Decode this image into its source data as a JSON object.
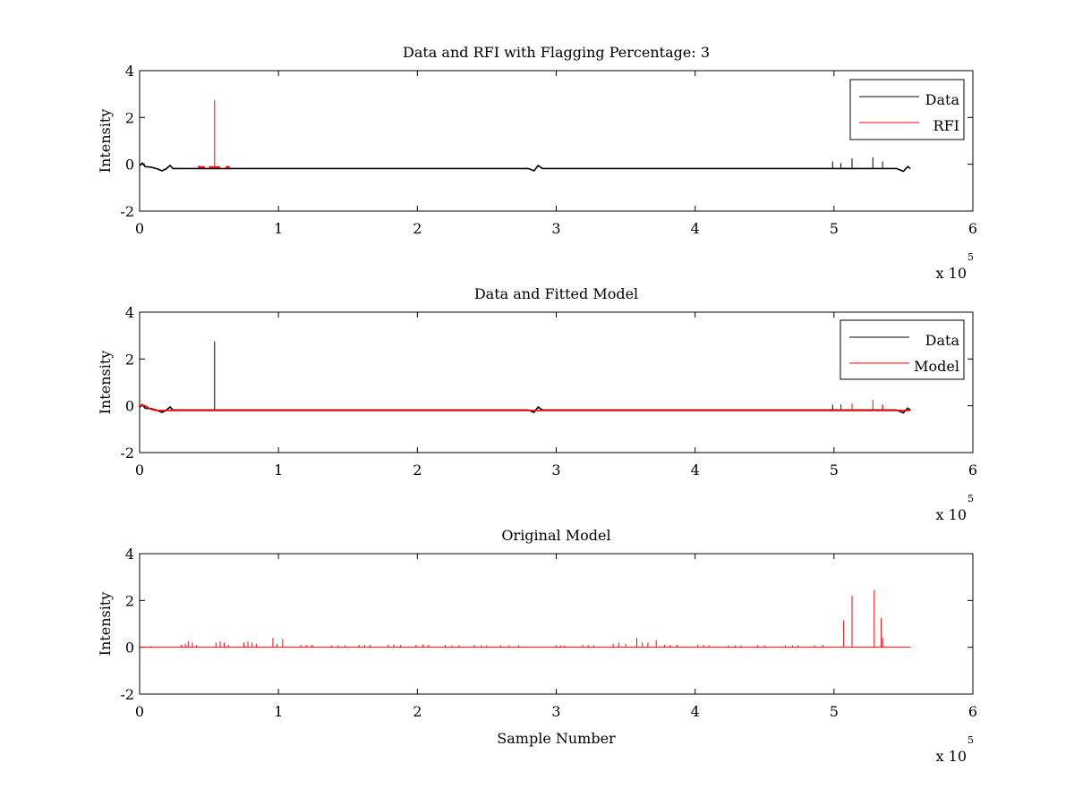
{
  "chart_data": [
    {
      "type": "line",
      "title": "Data and RFI with Flagging Percentage: 3",
      "xlabel": "",
      "ylabel": "Intensity",
      "x_exponent": "x 10",
      "x_exponent_power": "5",
      "xlim": [
        0,
        6
      ],
      "ylim": [
        -2,
        4
      ],
      "x_ticks": [
        "0",
        "1",
        "2",
        "3",
        "4",
        "5",
        "6"
      ],
      "y_ticks": [
        "-2",
        "0",
        "2",
        "4"
      ],
      "grid": false,
      "legend_position": "top-right",
      "series": [
        {
          "name": "Data",
          "color": "#000000",
          "baseline": -0.18,
          "x_end": 5.55,
          "points": [
            [
              0,
              -0.05
            ],
            [
              0.02,
              0.05
            ],
            [
              0.04,
              -0.1
            ],
            [
              0.08,
              -0.12
            ],
            [
              0.13,
              -0.2
            ],
            [
              0.16,
              -0.28
            ],
            [
              0.19,
              -0.2
            ],
            [
              0.22,
              -0.05
            ],
            [
              0.24,
              -0.18
            ],
            [
              2.8,
              -0.18
            ],
            [
              2.84,
              -0.28
            ],
            [
              2.87,
              -0.05
            ],
            [
              2.9,
              -0.18
            ],
            [
              5.45,
              -0.18
            ],
            [
              5.5,
              -0.3
            ],
            [
              5.53,
              -0.1
            ],
            [
              5.55,
              -0.18
            ]
          ],
          "spikes": [
            [
              4.99,
              0.12
            ],
            [
              5.05,
              0.05
            ],
            [
              5.13,
              0.25
            ],
            [
              5.28,
              0.3
            ],
            [
              5.35,
              0.12
            ]
          ]
        },
        {
          "name": "RFI",
          "color": "#ff0000",
          "baseline": -0.12,
          "segments": [
            [
              0.42,
              0.47
            ],
            [
              0.5,
              0.58
            ],
            [
              0.62,
              0.65
            ]
          ],
          "spikes": [
            [
              0.54,
              2.75
            ],
            [
              0.43,
              -0.05
            ],
            [
              0.63,
              -0.05
            ]
          ]
        }
      ]
    },
    {
      "type": "line",
      "title": "Data and Fitted Model",
      "xlabel": "",
      "ylabel": "Intensity",
      "x_exponent": "x 10",
      "x_exponent_power": "5",
      "xlim": [
        0,
        6
      ],
      "ylim": [
        -2,
        4
      ],
      "x_ticks": [
        "0",
        "1",
        "2",
        "3",
        "4",
        "5",
        "6"
      ],
      "y_ticks": [
        "-2",
        "0",
        "2",
        "4"
      ],
      "grid": false,
      "legend_position": "top-right",
      "series": [
        {
          "name": "Data",
          "color": "#000000",
          "baseline": -0.18,
          "x_end": 5.55,
          "points": [
            [
              0,
              -0.05
            ],
            [
              0.02,
              0.05
            ],
            [
              0.04,
              -0.1
            ],
            [
              0.08,
              -0.12
            ],
            [
              0.13,
              -0.2
            ],
            [
              0.16,
              -0.28
            ],
            [
              0.19,
              -0.2
            ],
            [
              0.22,
              -0.05
            ],
            [
              0.24,
              -0.18
            ],
            [
              2.8,
              -0.18
            ],
            [
              2.84,
              -0.28
            ],
            [
              2.87,
              -0.05
            ],
            [
              2.9,
              -0.18
            ],
            [
              5.45,
              -0.18
            ],
            [
              5.5,
              -0.3
            ],
            [
              5.53,
              -0.1
            ],
            [
              5.55,
              -0.18
            ]
          ],
          "spikes": [
            [
              0.54,
              2.75
            ],
            [
              4.99,
              0.05
            ],
            [
              5.05,
              0.05
            ],
            [
              5.35,
              0.05
            ]
          ]
        },
        {
          "name": "Model",
          "color": "#ff0000",
          "baseline": -0.2,
          "x_end": 5.55,
          "points": [
            [
              0,
              0.02
            ],
            [
              0.04,
              0.0
            ],
            [
              0.08,
              -0.15
            ],
            [
              0.12,
              -0.2
            ],
            [
              5.55,
              -0.2
            ]
          ],
          "spikes": [
            [
              5.05,
              0.0
            ],
            [
              5.13,
              0.1
            ],
            [
              5.28,
              0.25
            ],
            [
              5.35,
              0.05
            ]
          ]
        }
      ]
    },
    {
      "type": "line",
      "title": "Original Model",
      "xlabel": "Sample Number",
      "ylabel": "Intensity",
      "x_exponent": "x 10",
      "x_exponent_power": "5",
      "xlim": [
        0,
        6
      ],
      "ylim": [
        -2,
        4
      ],
      "x_ticks": [
        "0",
        "1",
        "2",
        "3",
        "4",
        "5",
        "6"
      ],
      "y_ticks": [
        "-2",
        "0",
        "2",
        "4"
      ],
      "grid": false,
      "legend_position": "none",
      "series": [
        {
          "color": "#ff0000",
          "baseline": 0,
          "x_end": 5.55,
          "spikes": [
            [
              0.08,
              0.05
            ],
            [
              0.3,
              0.1
            ],
            [
              0.33,
              0.15
            ],
            [
              0.35,
              0.25
            ],
            [
              0.38,
              0.2
            ],
            [
              0.41,
              0.1
            ],
            [
              0.55,
              0.2
            ],
            [
              0.58,
              0.25
            ],
            [
              0.61,
              0.2
            ],
            [
              0.64,
              0.1
            ],
            [
              0.75,
              0.2
            ],
            [
              0.78,
              0.25
            ],
            [
              0.81,
              0.2
            ],
            [
              0.84,
              0.15
            ],
            [
              0.96,
              0.4
            ],
            [
              0.99,
              0.15
            ],
            [
              1.03,
              0.35
            ],
            [
              1.16,
              0.1
            ],
            [
              1.2,
              0.1
            ],
            [
              1.24,
              0.1
            ],
            [
              1.38,
              0.08
            ],
            [
              1.43,
              0.08
            ],
            [
              1.48,
              0.08
            ],
            [
              1.58,
              0.1
            ],
            [
              1.62,
              0.1
            ],
            [
              1.66,
              0.1
            ],
            [
              1.79,
              0.12
            ],
            [
              1.83,
              0.12
            ],
            [
              1.88,
              0.1
            ],
            [
              1.99,
              0.1
            ],
            [
              2.04,
              0.12
            ],
            [
              2.08,
              0.1
            ],
            [
              2.2,
              0.1
            ],
            [
              2.25,
              0.08
            ],
            [
              2.3,
              0.08
            ],
            [
              2.41,
              0.1
            ],
            [
              2.46,
              0.08
            ],
            [
              2.5,
              0.08
            ],
            [
              2.6,
              0.08
            ],
            [
              2.66,
              0.08
            ],
            [
              2.73,
              0.08
            ],
            [
              3.0,
              0.08
            ],
            [
              3.03,
              0.08
            ],
            [
              3.06,
              0.08
            ],
            [
              3.19,
              0.1
            ],
            [
              3.23,
              0.1
            ],
            [
              3.27,
              0.08
            ],
            [
              3.41,
              0.15
            ],
            [
              3.45,
              0.2
            ],
            [
              3.5,
              0.15
            ],
            [
              3.58,
              0.4
            ],
            [
              3.62,
              0.2
            ],
            [
              3.66,
              0.2
            ],
            [
              3.72,
              0.3
            ],
            [
              3.78,
              0.1
            ],
            [
              3.82,
              0.1
            ],
            [
              3.87,
              0.1
            ],
            [
              4.02,
              0.12
            ],
            [
              4.06,
              0.1
            ],
            [
              4.1,
              0.08
            ],
            [
              4.24,
              0.08
            ],
            [
              4.29,
              0.08
            ],
            [
              4.33,
              0.08
            ],
            [
              4.45,
              0.08
            ],
            [
              4.5,
              0.08
            ],
            [
              4.65,
              0.08
            ],
            [
              4.7,
              0.08
            ],
            [
              4.74,
              0.08
            ],
            [
              4.86,
              0.08
            ],
            [
              4.92,
              0.1
            ],
            [
              5.07,
              1.15
            ],
            [
              5.13,
              2.2
            ],
            [
              5.29,
              2.45
            ],
            [
              5.34,
              1.25
            ],
            [
              5.35,
              0.4
            ]
          ]
        }
      ]
    }
  ]
}
